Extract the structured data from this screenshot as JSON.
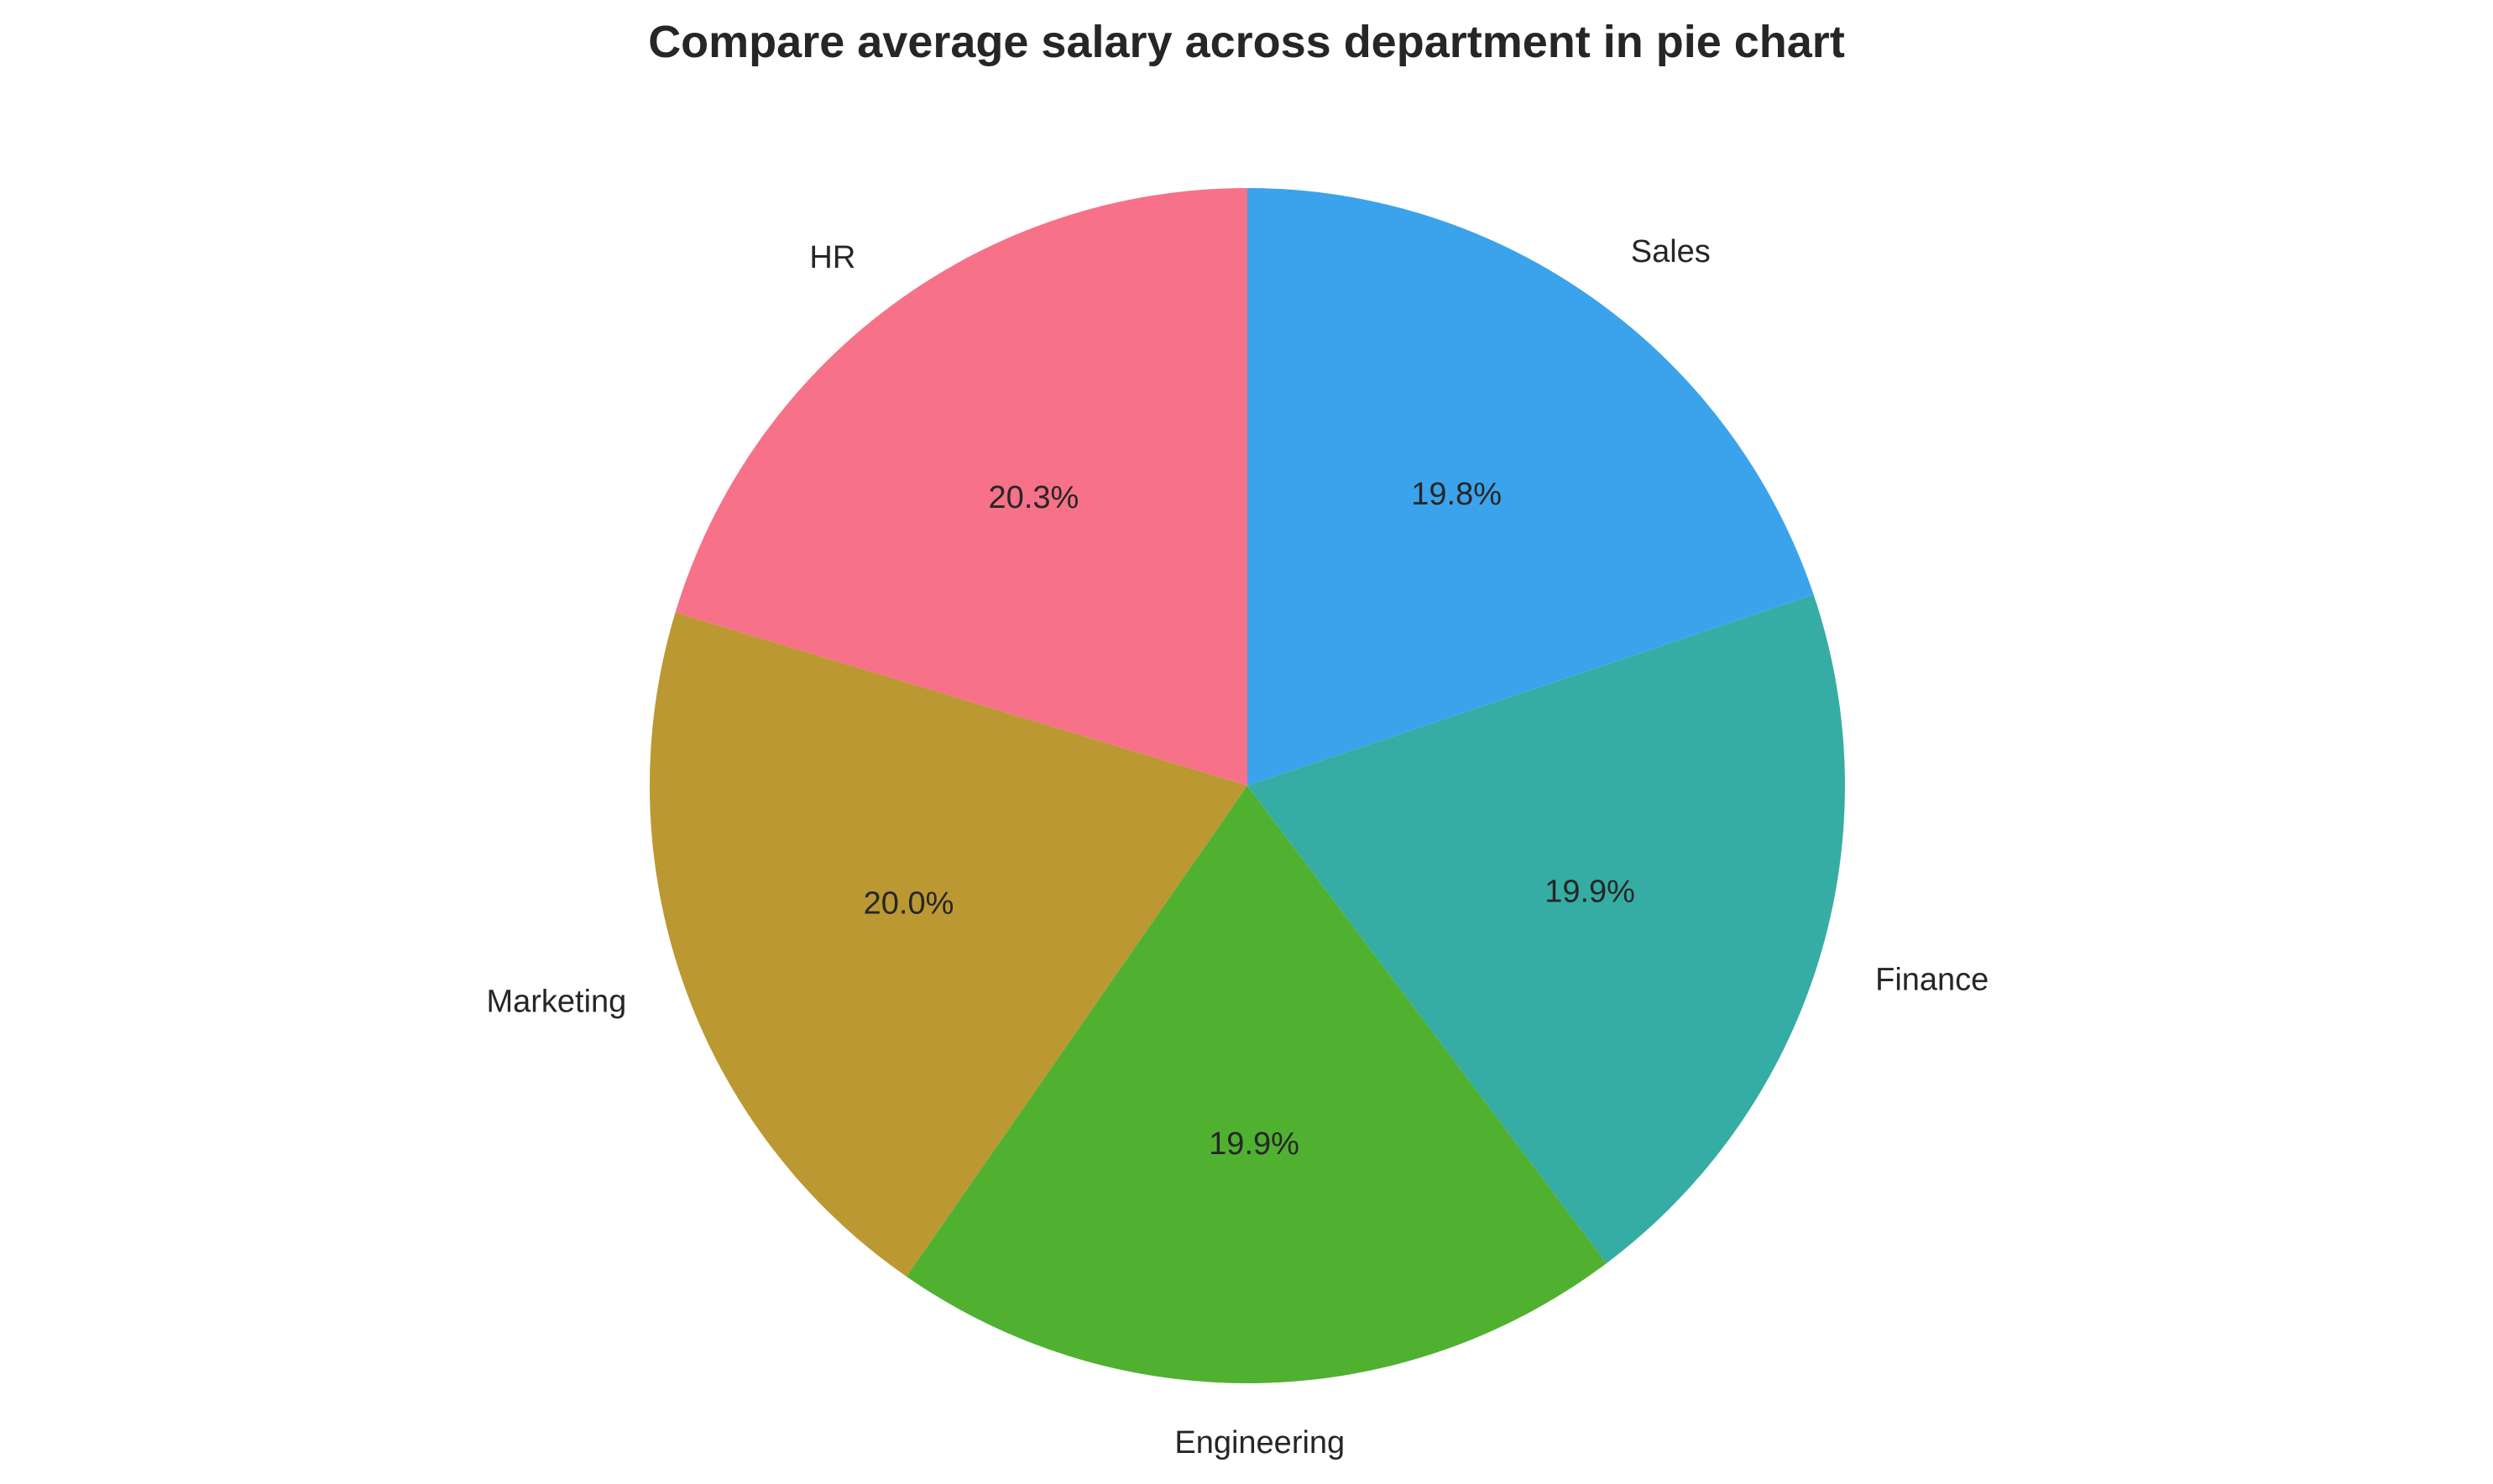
{
  "chart_data": {
    "type": "pie",
    "title": "Compare average salary across department in pie chart",
    "start_angle_deg": 90,
    "direction": "counterclockwise",
    "slices": [
      {
        "label": "HR",
        "percent": 20.3,
        "percent_label": "20.3%",
        "color": "#f77189"
      },
      {
        "label": "Marketing",
        "percent": 20.0,
        "percent_label": "20.0%",
        "color": "#bb9832"
      },
      {
        "label": "Engineering",
        "percent": 19.9,
        "percent_label": "19.9%",
        "color": "#50b131"
      },
      {
        "label": "Finance",
        "percent": 19.9,
        "percent_label": "19.9%",
        "color": "#36ada4"
      },
      {
        "label": "Sales",
        "percent": 19.8,
        "percent_label": "19.8%",
        "color": "#3ba3ec"
      }
    ]
  }
}
